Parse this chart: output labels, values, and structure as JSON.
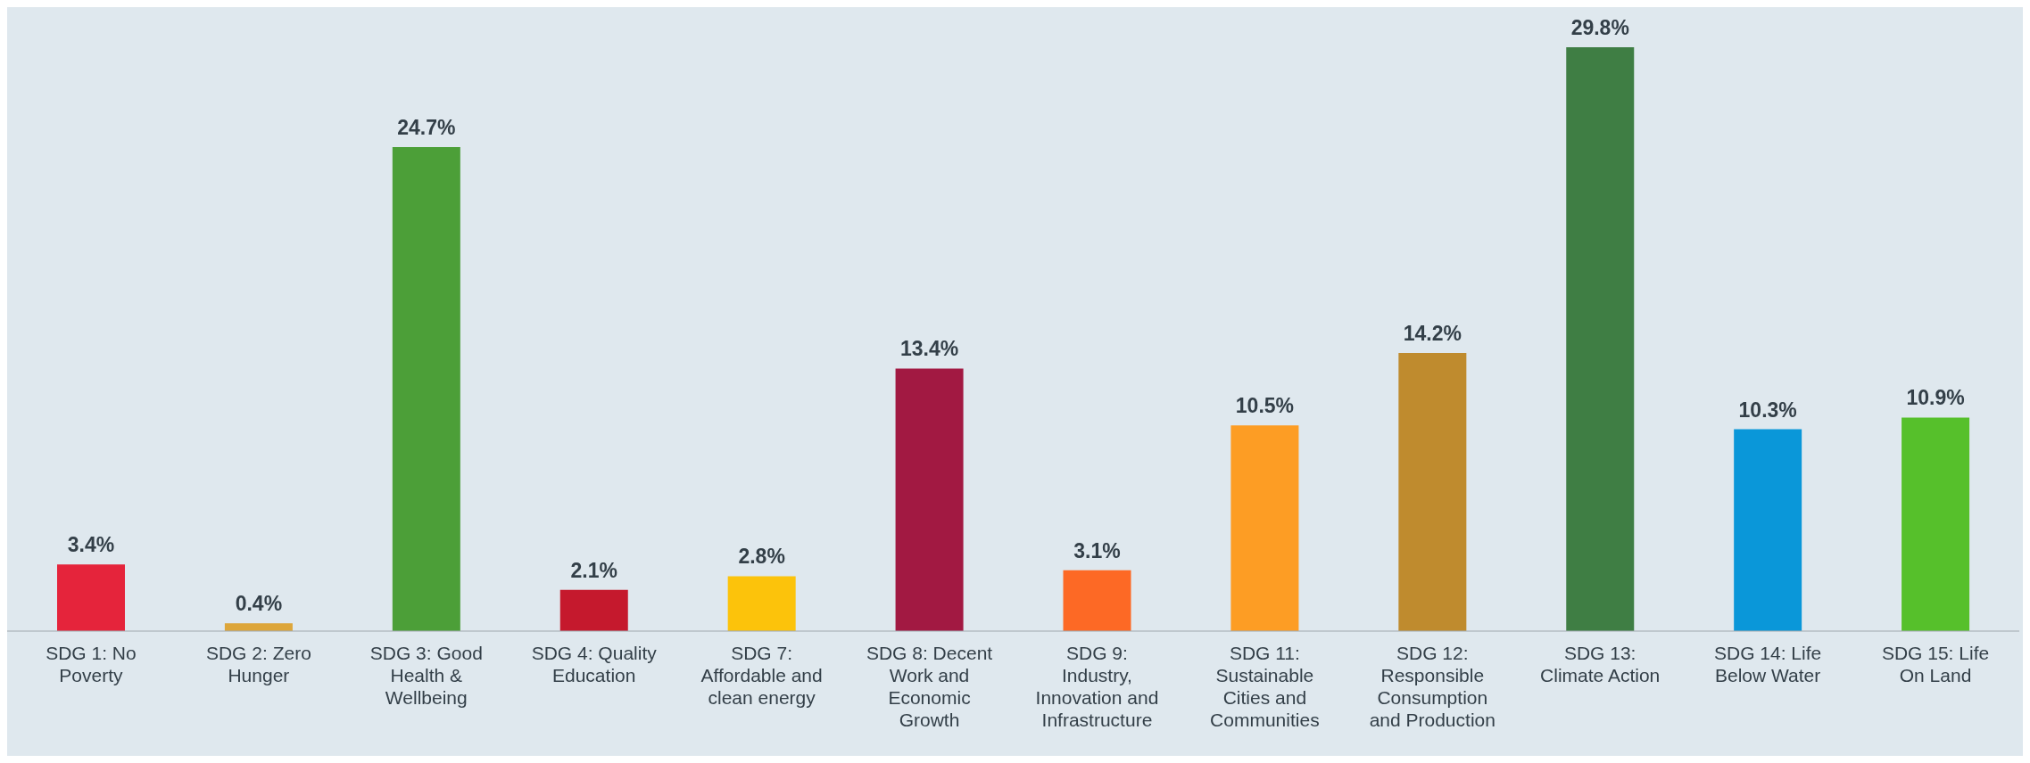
{
  "chart_data": {
    "type": "bar",
    "categories": [
      "SDG 1: No Poverty",
      "SDG 2: Zero Hunger",
      "SDG 3: Good Health & Wellbeing",
      "SDG 4: Quality Education",
      "SDG 7: Affordable and clean energy",
      "SDG 8: Decent Work and Economic Growth",
      "SDG 9: Industry, Innovation and Infrastructure",
      "SDG 11: Sustainable Cities and Communities",
      "SDG 12: Responsible Consumption and Production",
      "SDG 13: Climate Action",
      "SDG 14: Life Below Water",
      "SDG 15: Life On Land"
    ],
    "values": [
      3.4,
      0.4,
      24.7,
      2.1,
      2.8,
      13.4,
      3.1,
      10.5,
      14.2,
      29.8,
      10.3,
      10.9
    ],
    "value_labels": [
      "3.4%",
      "0.4%",
      "24.7%",
      "2.1%",
      "2.8%",
      "13.4%",
      "3.1%",
      "10.5%",
      "14.2%",
      "29.8%",
      "10.3%",
      "10.9%"
    ],
    "colors": [
      "#e5243b",
      "#dda63a",
      "#4c9f38",
      "#c5192d",
      "#fcc30b",
      "#a21942",
      "#fd6925",
      "#fd9d24",
      "#bf8b2e",
      "#3f7e44",
      "#0a97d9",
      "#56c02b"
    ],
    "grid": false,
    "legend": false
  }
}
